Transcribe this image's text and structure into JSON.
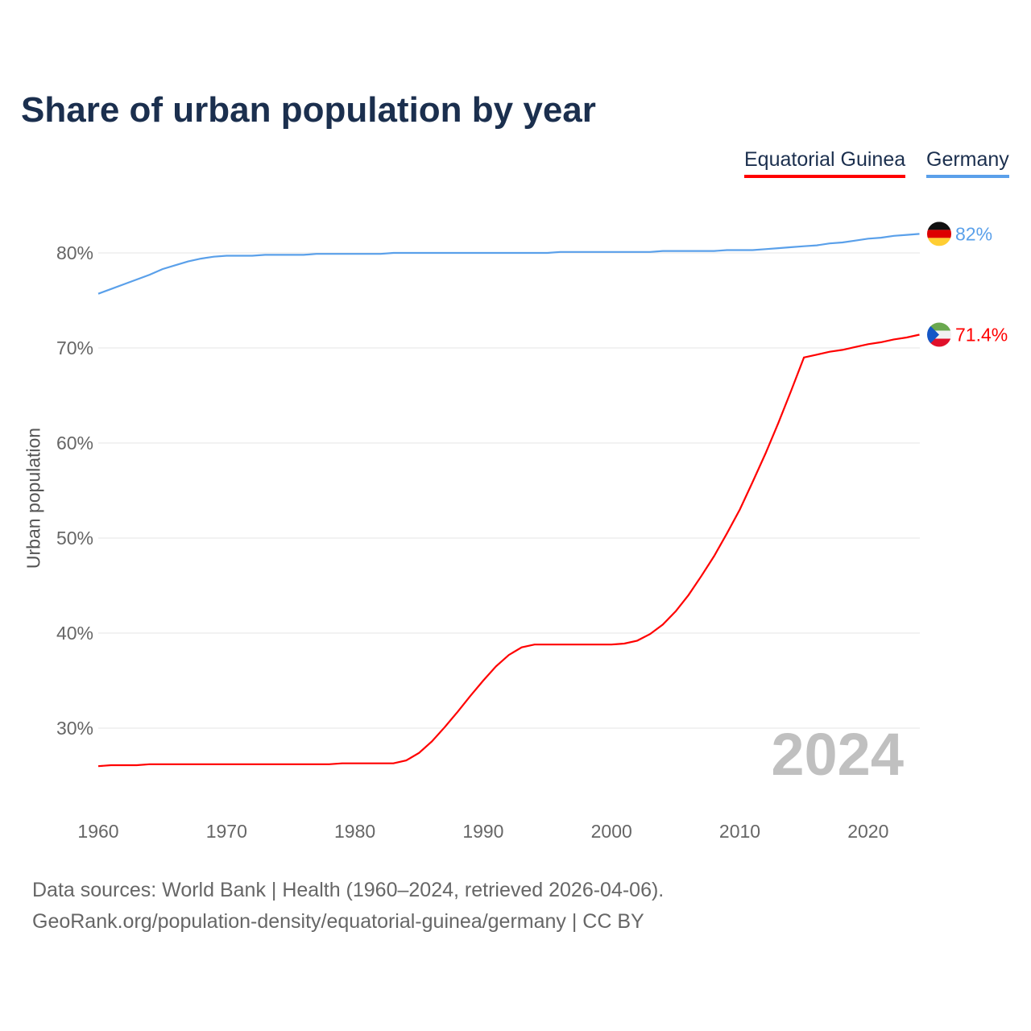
{
  "chart_data": {
    "type": "line",
    "title": "Share of urban population by year",
    "ylabel": "Urban population",
    "xlabel": "",
    "xlim": [
      1960,
      2024
    ],
    "ylim": [
      22,
      86
    ],
    "x_ticks": [
      1960,
      1970,
      1980,
      1990,
      2000,
      2010,
      2020
    ],
    "y_ticks": [
      30,
      40,
      50,
      60,
      70,
      80
    ],
    "y_tick_labels": [
      "30%",
      "40%",
      "50%",
      "60%",
      "70%",
      "80%"
    ],
    "grid": true,
    "legend_placement": "top-right",
    "watermark_year": "2024",
    "series": [
      {
        "name": "Equatorial Guinea",
        "color": "#ff0000",
        "end_label": "71.4%",
        "x": [
          1960,
          1961,
          1962,
          1963,
          1964,
          1965,
          1970,
          1975,
          1978,
          1979,
          1980,
          1983,
          1984,
          1985,
          1986,
          1987,
          1988,
          1989,
          1990,
          1991,
          1992,
          1993,
          1994,
          1995,
          2000,
          2001,
          2002,
          2003,
          2004,
          2005,
          2006,
          2007,
          2008,
          2009,
          2010,
          2011,
          2012,
          2013,
          2014,
          2015,
          2016,
          2017,
          2018,
          2019,
          2020,
          2021,
          2022,
          2023,
          2024
        ],
        "values": [
          26.0,
          26.1,
          26.1,
          26.1,
          26.2,
          26.2,
          26.2,
          26.2,
          26.2,
          26.3,
          26.3,
          26.3,
          26.6,
          27.4,
          28.6,
          30.1,
          31.7,
          33.4,
          35.0,
          36.5,
          37.7,
          38.5,
          38.8,
          38.8,
          38.8,
          38.9,
          39.2,
          39.9,
          40.9,
          42.3,
          44.0,
          46.0,
          48.1,
          50.5,
          53.0,
          55.9,
          58.9,
          62.1,
          65.5,
          69.0,
          69.3,
          69.6,
          69.8,
          70.1,
          70.4,
          70.6,
          70.9,
          71.1,
          71.4
        ]
      },
      {
        "name": "Germany",
        "color": "#5aa0ea",
        "end_label": "82%",
        "x": [
          1960,
          1961,
          1962,
          1963,
          1964,
          1965,
          1966,
          1967,
          1968,
          1969,
          1970,
          1972,
          1973,
          1976,
          1977,
          1982,
          1983,
          1995,
          1996,
          2003,
          2004,
          2008,
          2009,
          2011,
          2012,
          2013,
          2014,
          2015,
          2016,
          2017,
          2018,
          2019,
          2020,
          2021,
          2022,
          2023,
          2024
        ],
        "values": [
          75.7,
          76.2,
          76.7,
          77.2,
          77.7,
          78.3,
          78.7,
          79.1,
          79.4,
          79.6,
          79.7,
          79.7,
          79.8,
          79.8,
          79.9,
          79.9,
          80.0,
          80.0,
          80.1,
          80.1,
          80.2,
          80.2,
          80.3,
          80.3,
          80.4,
          80.5,
          80.6,
          80.7,
          80.8,
          81.0,
          81.1,
          81.3,
          81.5,
          81.6,
          81.8,
          81.9,
          82.0
        ]
      }
    ]
  },
  "footer": {
    "line1": "Data sources: World Bank | Health (1960–2024, retrieved 2026-04-06).",
    "line2": "GeoRank.org/population-density/equatorial-guinea/germany | CC BY"
  }
}
